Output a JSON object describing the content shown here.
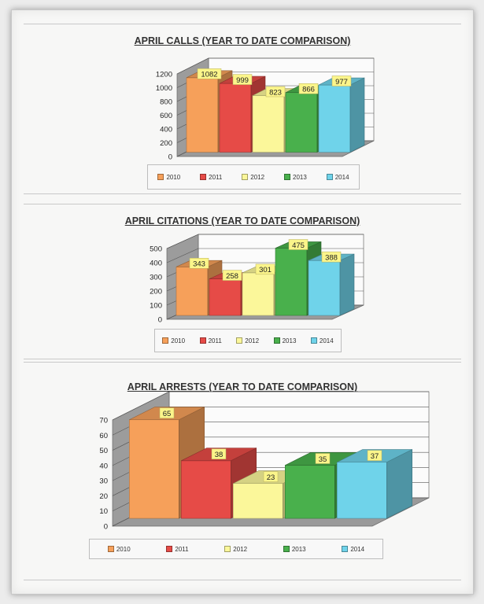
{
  "legend_colors": [
    "#f6a05a",
    "#e64b47",
    "#fbf79a",
    "#49b04c",
    "#6fd3ea"
  ],
  "chart_data": [
    {
      "type": "bar",
      "title": "APRIL CALLS (YEAR TO DATE COMPARISON)",
      "categories": [
        "2010",
        "2011",
        "2012",
        "2013",
        "2014"
      ],
      "values": [
        1082,
        999,
        823,
        866,
        977
      ],
      "yticks": [
        "0",
        "200",
        "400",
        "600",
        "800",
        "1000",
        "1200"
      ],
      "ylim": [
        0,
        1200
      ],
      "legend": [
        "2010",
        "2011",
        "2012",
        "2013",
        "2014"
      ]
    },
    {
      "type": "bar",
      "title": "APRIL CITATIONS (YEAR TO DATE COMPARISON)",
      "categories": [
        "2010",
        "2011",
        "2012",
        "2013",
        "2014"
      ],
      "values": [
        343,
        258,
        301,
        475,
        388
      ],
      "yticks": [
        "0",
        "100",
        "200",
        "300",
        "400",
        "500"
      ],
      "ylim": [
        0,
        500
      ],
      "legend": [
        "2010",
        "2011",
        "2012",
        "2013",
        "2014"
      ]
    },
    {
      "type": "bar",
      "title": "APRIL ARRESTS (YEAR TO DATE COMPARISON)",
      "categories": [
        "2010",
        "2011",
        "2012",
        "2013",
        "2014"
      ],
      "values": [
        65,
        38,
        23,
        35,
        37
      ],
      "yticks": [
        "0",
        "10",
        "20",
        "30",
        "40",
        "50",
        "60",
        "70"
      ],
      "ylim": [
        0,
        70
      ],
      "legend": [
        "2010",
        "2011",
        "2012",
        "2013",
        "2014"
      ]
    }
  ]
}
